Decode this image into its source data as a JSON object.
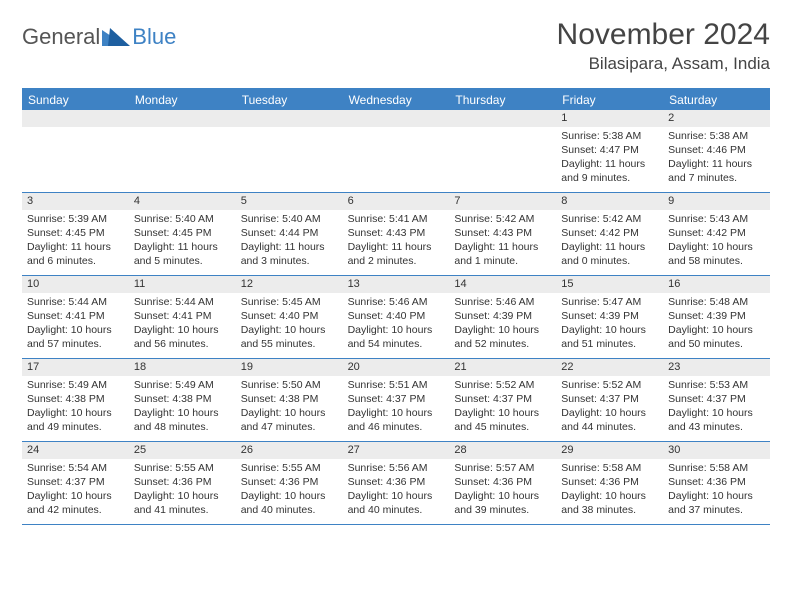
{
  "logo": {
    "part1": "General",
    "part2": "Blue"
  },
  "title": "November 2024",
  "location": "Bilasipara, Assam, India",
  "day_headers": [
    "Sunday",
    "Monday",
    "Tuesday",
    "Wednesday",
    "Thursday",
    "Friday",
    "Saturday"
  ],
  "colors": {
    "accent": "#3e82c4",
    "header_bg": "#3e82c4",
    "header_text": "#ffffff",
    "daynum_bg": "#ececec",
    "text": "#333333",
    "logo_gray": "#555555",
    "logo_blue": "#3e82c4"
  },
  "weeks": [
    [
      {
        "empty": true
      },
      {
        "empty": true
      },
      {
        "empty": true
      },
      {
        "empty": true
      },
      {
        "empty": true
      },
      {
        "num": "1",
        "sunrise": "Sunrise: 5:38 AM",
        "sunset": "Sunset: 4:47 PM",
        "daylight": "Daylight: 11 hours and 9 minutes."
      },
      {
        "num": "2",
        "sunrise": "Sunrise: 5:38 AM",
        "sunset": "Sunset: 4:46 PM",
        "daylight": "Daylight: 11 hours and 7 minutes."
      }
    ],
    [
      {
        "num": "3",
        "sunrise": "Sunrise: 5:39 AM",
        "sunset": "Sunset: 4:45 PM",
        "daylight": "Daylight: 11 hours and 6 minutes."
      },
      {
        "num": "4",
        "sunrise": "Sunrise: 5:40 AM",
        "sunset": "Sunset: 4:45 PM",
        "daylight": "Daylight: 11 hours and 5 minutes."
      },
      {
        "num": "5",
        "sunrise": "Sunrise: 5:40 AM",
        "sunset": "Sunset: 4:44 PM",
        "daylight": "Daylight: 11 hours and 3 minutes."
      },
      {
        "num": "6",
        "sunrise": "Sunrise: 5:41 AM",
        "sunset": "Sunset: 4:43 PM",
        "daylight": "Daylight: 11 hours and 2 minutes."
      },
      {
        "num": "7",
        "sunrise": "Sunrise: 5:42 AM",
        "sunset": "Sunset: 4:43 PM",
        "daylight": "Daylight: 11 hours and 1 minute."
      },
      {
        "num": "8",
        "sunrise": "Sunrise: 5:42 AM",
        "sunset": "Sunset: 4:42 PM",
        "daylight": "Daylight: 11 hours and 0 minutes."
      },
      {
        "num": "9",
        "sunrise": "Sunrise: 5:43 AM",
        "sunset": "Sunset: 4:42 PM",
        "daylight": "Daylight: 10 hours and 58 minutes."
      }
    ],
    [
      {
        "num": "10",
        "sunrise": "Sunrise: 5:44 AM",
        "sunset": "Sunset: 4:41 PM",
        "daylight": "Daylight: 10 hours and 57 minutes."
      },
      {
        "num": "11",
        "sunrise": "Sunrise: 5:44 AM",
        "sunset": "Sunset: 4:41 PM",
        "daylight": "Daylight: 10 hours and 56 minutes."
      },
      {
        "num": "12",
        "sunrise": "Sunrise: 5:45 AM",
        "sunset": "Sunset: 4:40 PM",
        "daylight": "Daylight: 10 hours and 55 minutes."
      },
      {
        "num": "13",
        "sunrise": "Sunrise: 5:46 AM",
        "sunset": "Sunset: 4:40 PM",
        "daylight": "Daylight: 10 hours and 54 minutes."
      },
      {
        "num": "14",
        "sunrise": "Sunrise: 5:46 AM",
        "sunset": "Sunset: 4:39 PM",
        "daylight": "Daylight: 10 hours and 52 minutes."
      },
      {
        "num": "15",
        "sunrise": "Sunrise: 5:47 AM",
        "sunset": "Sunset: 4:39 PM",
        "daylight": "Daylight: 10 hours and 51 minutes."
      },
      {
        "num": "16",
        "sunrise": "Sunrise: 5:48 AM",
        "sunset": "Sunset: 4:39 PM",
        "daylight": "Daylight: 10 hours and 50 minutes."
      }
    ],
    [
      {
        "num": "17",
        "sunrise": "Sunrise: 5:49 AM",
        "sunset": "Sunset: 4:38 PM",
        "daylight": "Daylight: 10 hours and 49 minutes."
      },
      {
        "num": "18",
        "sunrise": "Sunrise: 5:49 AM",
        "sunset": "Sunset: 4:38 PM",
        "daylight": "Daylight: 10 hours and 48 minutes."
      },
      {
        "num": "19",
        "sunrise": "Sunrise: 5:50 AM",
        "sunset": "Sunset: 4:38 PM",
        "daylight": "Daylight: 10 hours and 47 minutes."
      },
      {
        "num": "20",
        "sunrise": "Sunrise: 5:51 AM",
        "sunset": "Sunset: 4:37 PM",
        "daylight": "Daylight: 10 hours and 46 minutes."
      },
      {
        "num": "21",
        "sunrise": "Sunrise: 5:52 AM",
        "sunset": "Sunset: 4:37 PM",
        "daylight": "Daylight: 10 hours and 45 minutes."
      },
      {
        "num": "22",
        "sunrise": "Sunrise: 5:52 AM",
        "sunset": "Sunset: 4:37 PM",
        "daylight": "Daylight: 10 hours and 44 minutes."
      },
      {
        "num": "23",
        "sunrise": "Sunrise: 5:53 AM",
        "sunset": "Sunset: 4:37 PM",
        "daylight": "Daylight: 10 hours and 43 minutes."
      }
    ],
    [
      {
        "num": "24",
        "sunrise": "Sunrise: 5:54 AM",
        "sunset": "Sunset: 4:37 PM",
        "daylight": "Daylight: 10 hours and 42 minutes."
      },
      {
        "num": "25",
        "sunrise": "Sunrise: 5:55 AM",
        "sunset": "Sunset: 4:36 PM",
        "daylight": "Daylight: 10 hours and 41 minutes."
      },
      {
        "num": "26",
        "sunrise": "Sunrise: 5:55 AM",
        "sunset": "Sunset: 4:36 PM",
        "daylight": "Daylight: 10 hours and 40 minutes."
      },
      {
        "num": "27",
        "sunrise": "Sunrise: 5:56 AM",
        "sunset": "Sunset: 4:36 PM",
        "daylight": "Daylight: 10 hours and 40 minutes."
      },
      {
        "num": "28",
        "sunrise": "Sunrise: 5:57 AM",
        "sunset": "Sunset: 4:36 PM",
        "daylight": "Daylight: 10 hours and 39 minutes."
      },
      {
        "num": "29",
        "sunrise": "Sunrise: 5:58 AM",
        "sunset": "Sunset: 4:36 PM",
        "daylight": "Daylight: 10 hours and 38 minutes."
      },
      {
        "num": "30",
        "sunrise": "Sunrise: 5:58 AM",
        "sunset": "Sunset: 4:36 PM",
        "daylight": "Daylight: 10 hours and 37 minutes."
      }
    ]
  ]
}
